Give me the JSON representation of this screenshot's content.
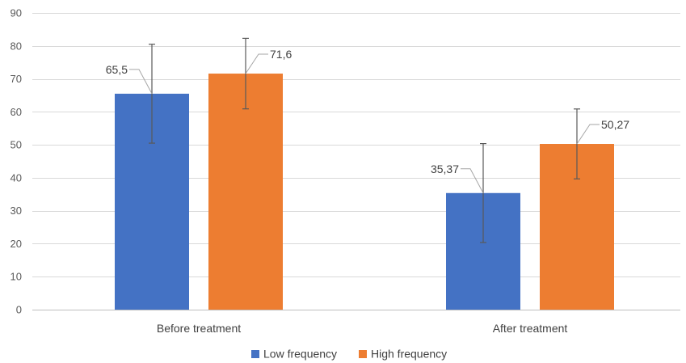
{
  "chart_data": {
    "type": "bar",
    "categories": [
      "Before treatment",
      "After treatment"
    ],
    "series": [
      {
        "name": "Low frequency",
        "values": [
          65.5,
          35.37
        ],
        "labels": [
          "65,5",
          "35,37"
        ],
        "error": [
          15,
          15
        ],
        "color": "#4472c4"
      },
      {
        "name": "High frequency",
        "values": [
          71.6,
          50.27
        ],
        "labels": [
          "71,6",
          "50,27"
        ],
        "error": [
          10.7,
          10.6
        ],
        "color": "#ed7d31"
      }
    ],
    "ylim": [
      0,
      90
    ],
    "yticks": [
      0,
      10,
      20,
      30,
      40,
      50,
      60,
      70,
      80,
      90
    ],
    "grid": true,
    "legend_position": "bottom"
  }
}
